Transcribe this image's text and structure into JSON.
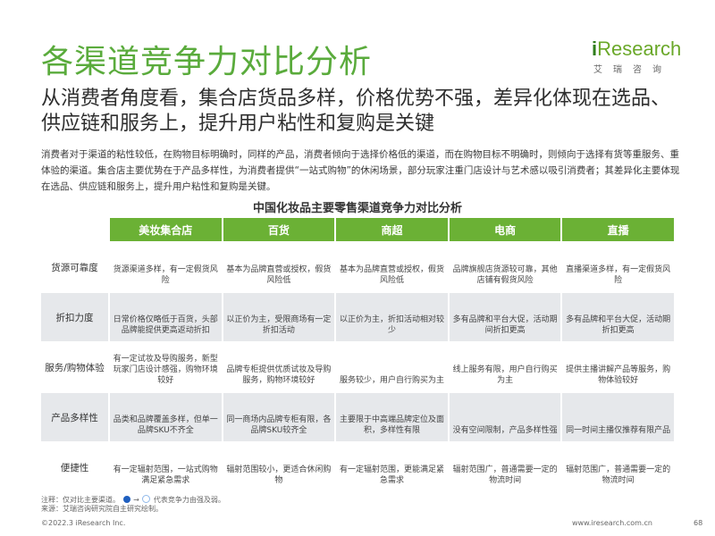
{
  "title": "各渠道竞争力对比分析",
  "logo": {
    "brand_prefix": "i",
    "brand_suffix": "Research",
    "sub": "艾瑞咨询"
  },
  "headline": "从消费者角度看，集合店货品多样，价格优势不强，差异化体现在选品、供应链和服务上，提升用户粘性和复购是关键",
  "paragraph": "消费者对于渠道的粘性较低，在购物目标明确时，同样的产品，消费者倾向于选择价格低的渠道，而在购物目标不明确时，则倾向于选择有货等重服务、重体验的渠道。集合店主要优势在于产品多样性，为消费者提供“一站式购物”的休闲场景，部分玩家注重门店设计与艺术感以吸引消费者；其差异化主要体现在选品、供应链和服务上，提升用户粘性和复购是关键。",
  "table": {
    "title": "中国化妆品主要零售渠道竞争力对比分析",
    "columns": [
      "美妆集合店",
      "百货",
      "商超",
      "电商",
      "直播"
    ],
    "rows": [
      {
        "label": "货源可靠度",
        "cells": [
          "货源渠道多样，有一定假货风险",
          "基本为品牌直营或授权，假货风险低",
          "基本为品牌直营或授权，假货风险低",
          "品牌旗舰店货源较可靠，其他店铺有假货风险",
          "直播渠道多样，有一定假货风险"
        ]
      },
      {
        "label": "折扣力度",
        "cells": [
          "日常价格仅略低于百货，头部品牌能提供更高返动折扣",
          "以正价为主，受限商场有一定折扣活动",
          "以正价为主，折扣活动相对较少",
          "多有品牌和平台大促，活动期间折扣更高",
          "多有品牌和平台大促，活动期折扣更高"
        ]
      },
      {
        "label": "服务/购物体验",
        "cells": [
          "有一定试妆及导购服务，新型玩家门店设计感强，购物环境较好",
          "品牌专柜提供优质试妆及导购服务，购物环境较好",
          "服务较少，用户自行购买为主",
          "线上服务有限，用户自行购买为主",
          "提供主播讲解产品等服务，购物体验较好"
        ]
      },
      {
        "label": "产品多样性",
        "cells": [
          "品类和品牌覆盖多样，但单一品牌SKU不齐全",
          "同一商场内品牌专柜有限，各品牌SKU较齐全",
          "主要限于中高端品牌定位及面积，多样性有限",
          "没有空间限制，产品多样性强",
          "同一时间主播仅推荐有限产品"
        ]
      },
      {
        "label": "便捷性",
        "cells": [
          "有一定辐射范围，一站式购物满足紧急需求",
          "辐射范围较小，更适合休闲购物",
          "有一定辐射范围，更能满足紧急需求",
          "辐射范围广，普通需要一定的物流时间",
          "辐射范围广，普通需要一定的物流时间"
        ]
      }
    ]
  },
  "note": {
    "line1_a": "注释：仅对比主要渠道。",
    "line1_b": "代表竞争力由强及弱。",
    "line2": "来源：艾瑞咨询研究院自主研究绘制。"
  },
  "footer": {
    "copyright": "©2022.3 iResearch Inc.",
    "url": "www.iresearch.com.cn",
    "page": "68"
  },
  "colors": {
    "accent": "#6bb135",
    "title_green": "#5aab3c",
    "row_shade": "#e6e8eb",
    "circle_strong": "#1f5fbf",
    "circle_weak": "#8fb8ea"
  }
}
